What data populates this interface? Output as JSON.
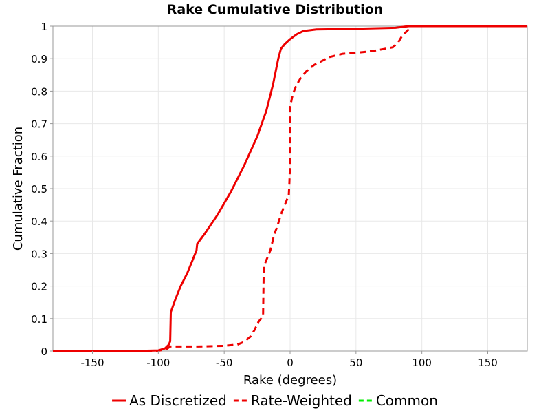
{
  "chart_data": {
    "type": "line",
    "title": "Rake Cumulative Distribution",
    "xlabel": "Rake (degrees)",
    "ylabel": "Cumulative Fraction",
    "xlim": [
      -180,
      180
    ],
    "ylim": [
      0,
      1
    ],
    "xticks": [
      -150,
      -100,
      -50,
      0,
      50,
      100,
      150
    ],
    "yticks": [
      0,
      0.1,
      0.2,
      0.3,
      0.4,
      0.5,
      0.6,
      0.7,
      0.8,
      0.9,
      1
    ],
    "ytick_labels": [
      "0",
      "0.1",
      "0.2",
      "0.3",
      "0.4",
      "0.5",
      "0.6",
      "0.7",
      "0.8",
      "0.9",
      "1"
    ],
    "grid": true,
    "legend_position": "bottom",
    "series": [
      {
        "name": "As Discretized",
        "color": "#ee0000",
        "dash": "solid",
        "points": [
          [
            -180,
            0
          ],
          [
            -120,
            0
          ],
          [
            -100,
            0.002
          ],
          [
            -95,
            0.008
          ],
          [
            -92,
            0.02
          ],
          [
            -91,
            0.03
          ],
          [
            -90.5,
            0.12
          ],
          [
            -87,
            0.16
          ],
          [
            -83,
            0.2
          ],
          [
            -78,
            0.24
          ],
          [
            -74,
            0.28
          ],
          [
            -71,
            0.31
          ],
          [
            -70.5,
            0.33
          ],
          [
            -65,
            0.36
          ],
          [
            -55,
            0.42
          ],
          [
            -45,
            0.49
          ],
          [
            -35,
            0.57
          ],
          [
            -25,
            0.66
          ],
          [
            -18,
            0.74
          ],
          [
            -13,
            0.82
          ],
          [
            -9,
            0.9
          ],
          [
            -7,
            0.93
          ],
          [
            -4,
            0.945
          ],
          [
            0,
            0.96
          ],
          [
            5,
            0.975
          ],
          [
            10,
            0.985
          ],
          [
            20,
            0.99
          ],
          [
            50,
            0.992
          ],
          [
            80,
            0.995
          ],
          [
            90,
            1
          ],
          [
            180,
            1
          ]
        ]
      },
      {
        "name": "Rate-Weighted",
        "color": "#ee0000",
        "dash": "dashed",
        "points": [
          [
            -180,
            0
          ],
          [
            -120,
            0
          ],
          [
            -100,
            0.001
          ],
          [
            -94,
            0.005
          ],
          [
            -91,
            0.014
          ],
          [
            -70,
            0.014
          ],
          [
            -50,
            0.016
          ],
          [
            -40,
            0.02
          ],
          [
            -35,
            0.028
          ],
          [
            -30,
            0.045
          ],
          [
            -27,
            0.065
          ],
          [
            -24,
            0.09
          ],
          [
            -21,
            0.105
          ],
          [
            -20.5,
            0.11
          ],
          [
            -20,
            0.26
          ],
          [
            -18,
            0.28
          ],
          [
            -15,
            0.31
          ],
          [
            -12,
            0.36
          ],
          [
            -10,
            0.38
          ],
          [
            -7,
            0.42
          ],
          [
            -4,
            0.45
          ],
          [
            -1,
            0.48
          ],
          [
            -0.5,
            0.52
          ],
          [
            0,
            0.58
          ],
          [
            0,
            0.75
          ],
          [
            2,
            0.79
          ],
          [
            5,
            0.82
          ],
          [
            8,
            0.84
          ],
          [
            12,
            0.86
          ],
          [
            18,
            0.88
          ],
          [
            30,
            0.905
          ],
          [
            40,
            0.915
          ],
          [
            55,
            0.92
          ],
          [
            65,
            0.925
          ],
          [
            78,
            0.935
          ],
          [
            82,
            0.95
          ],
          [
            85,
            0.97
          ],
          [
            90,
            0.99
          ],
          [
            92,
            1
          ],
          [
            180,
            1
          ]
        ]
      },
      {
        "name": "Common",
        "color": "#00ee00",
        "dash": "dashed",
        "points": []
      }
    ]
  }
}
